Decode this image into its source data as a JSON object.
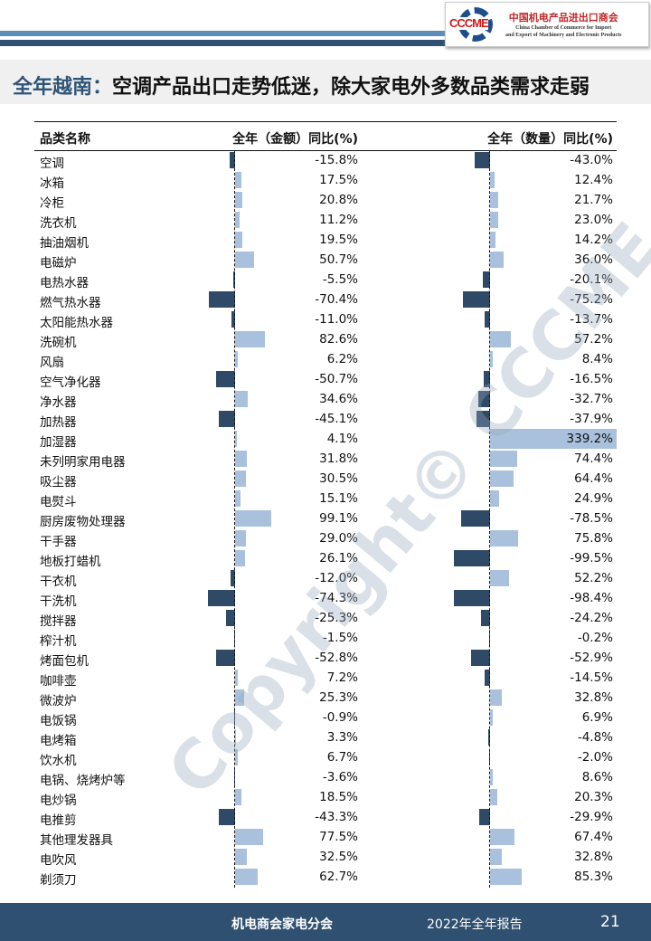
{
  "logo": {
    "abbr": "CCCME",
    "name_cn": "中国机电产品进出口商会",
    "name_en_1": "China Chamber of Commerce for Import",
    "name_en_2": "and Export of Machinery and Electronic Products"
  },
  "title": {
    "highlight": "全年越南：",
    "rest": "空调产品出口走势低迷，除大家电外多数品类需求走弱"
  },
  "table": {
    "headers": [
      "品类名称",
      "全年（金额）同比(%)",
      "全年（数量）同比(%)"
    ],
    "colors": {
      "positive": "#a9c1dc",
      "negative": "#2f4a66"
    },
    "rows": [
      {
        "name": "空调",
        "amount": -15.8,
        "quantity": -43.0
      },
      {
        "name": "冰箱",
        "amount": 17.5,
        "quantity": 12.4
      },
      {
        "name": "冷柜",
        "amount": 20.8,
        "quantity": 21.7
      },
      {
        "name": "洗衣机",
        "amount": 11.2,
        "quantity": 23.0
      },
      {
        "name": "抽油烟机",
        "amount": 19.5,
        "quantity": 14.2
      },
      {
        "name": "电磁炉",
        "amount": 50.7,
        "quantity": 36.0
      },
      {
        "name": "电热水器",
        "amount": -5.5,
        "quantity": -20.1
      },
      {
        "name": "燃气热水器",
        "amount": -70.4,
        "quantity": -75.2
      },
      {
        "name": "太阳能热水器",
        "amount": -11.0,
        "quantity": -13.7
      },
      {
        "name": "洗碗机",
        "amount": 82.6,
        "quantity": 57.2
      },
      {
        "name": "风扇",
        "amount": 6.2,
        "quantity": 8.4
      },
      {
        "name": "空气净化器",
        "amount": -50.7,
        "quantity": -16.5
      },
      {
        "name": "净水器",
        "amount": 34.6,
        "quantity": -32.7
      },
      {
        "name": "加热器",
        "amount": -45.1,
        "quantity": -37.9
      },
      {
        "name": "加湿器",
        "amount": 4.1,
        "quantity": 339.2,
        "highlight": true
      },
      {
        "name": "未列明家用电器",
        "amount": 31.8,
        "quantity": 74.4
      },
      {
        "name": "吸尘器",
        "amount": 30.5,
        "quantity": 64.4
      },
      {
        "name": "电熨斗",
        "amount": 15.1,
        "quantity": 24.9
      },
      {
        "name": "厨房废物处理器",
        "amount": 99.1,
        "quantity": -78.5
      },
      {
        "name": "干手器",
        "amount": 29.0,
        "quantity": 75.8
      },
      {
        "name": "地板打蜡机",
        "amount": 26.1,
        "quantity": -99.5
      },
      {
        "name": "干衣机",
        "amount": -12.0,
        "quantity": 52.2
      },
      {
        "name": "干洗机",
        "amount": -74.3,
        "quantity": -98.4
      },
      {
        "name": "搅拌器",
        "amount": -25.3,
        "quantity": -24.2
      },
      {
        "name": "榨汁机",
        "amount": -1.5,
        "quantity": -0.2
      },
      {
        "name": "烤面包机",
        "amount": -52.8,
        "quantity": -52.9
      },
      {
        "name": "咖啡壶",
        "amount": 7.2,
        "quantity": -14.5
      },
      {
        "name": "微波炉",
        "amount": 25.3,
        "quantity": 32.8
      },
      {
        "name": "电饭锅",
        "amount": -0.9,
        "quantity": 6.9
      },
      {
        "name": "电烤箱",
        "amount": 3.3,
        "quantity": -4.8
      },
      {
        "name": "饮水机",
        "amount": 6.7,
        "quantity": -2.0
      },
      {
        "name": "电锅、烧烤炉等",
        "amount": -3.6,
        "quantity": 8.6
      },
      {
        "name": "电炒锅",
        "amount": 18.5,
        "quantity": 20.3
      },
      {
        "name": "电推剪",
        "amount": -43.3,
        "quantity": -29.9
      },
      {
        "name": "其他理发器具",
        "amount": 77.5,
        "quantity": 67.4
      },
      {
        "name": "电吹风",
        "amount": 32.5,
        "quantity": 32.8
      },
      {
        "name": "剃须刀",
        "amount": 62.7,
        "quantity": 85.3
      }
    ]
  },
  "watermark": "Copyright© CCCME",
  "footer": {
    "org": "机电商会家电分会",
    "report": "2022年全年报告",
    "page": "21"
  }
}
